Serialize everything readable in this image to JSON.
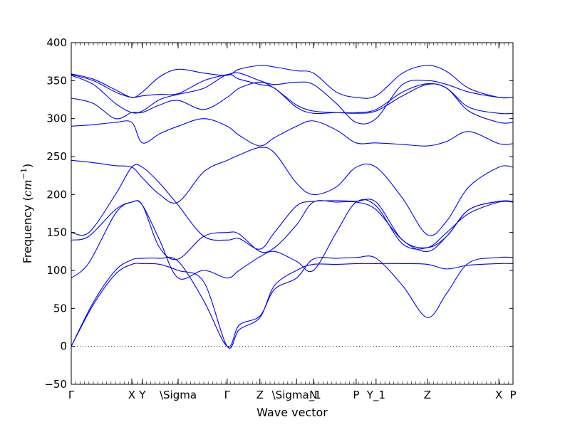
{
  "chart_data": {
    "type": "line",
    "title": "",
    "xlabel": "Wave vector",
    "ylabel_text": "Frequency (",
    "ylabel_unit": "cm",
    "ylabel_exp": "−1",
    "ylabel_close": ")",
    "ylim": [
      -50,
      400
    ],
    "yticks": [
      -50,
      0,
      50,
      100,
      150,
      200,
      250,
      300,
      350,
      400
    ],
    "xlim": [
      0,
      1
    ],
    "xticks": [
      {
        "label": "Γ",
        "x": 0.0
      },
      {
        "label": "X",
        "x": 0.137
      },
      {
        "label": "Y",
        "x": 0.161
      },
      {
        "label": "\\Sigma",
        "x": 0.242
      },
      {
        "label": "Γ",
        "x": 0.353
      },
      {
        "label": "Z",
        "x": 0.427
      },
      {
        "label": "\\Sigma_1",
        "x": 0.51
      },
      {
        "label": "N",
        "x": 0.548
      },
      {
        "label": "P",
        "x": 0.645
      },
      {
        "label": "Y_1",
        "x": 0.69
      },
      {
        "label": "Z",
        "x": 0.806
      },
      {
        "label": "X",
        "x": 0.968
      },
      {
        "label": "P",
        "x": 1.0
      }
    ],
    "zero_line": true,
    "line_color": "#0000ff",
    "series": [
      {
        "x": [
          0,
          0.05,
          0.1,
          0.137,
          0.161,
          0.2,
          0.242,
          0.3,
          0.353,
          0.38,
          0.427,
          0.46,
          0.51,
          0.548,
          0.6,
          0.645,
          0.69,
          0.75,
          0.806,
          0.85,
          0.9,
          0.968,
          1.0
        ],
        "y": [
          0,
          55,
          95,
          108,
          109,
          108,
          100,
          85,
          0,
          22,
          38,
          80,
          100,
          108,
          108,
          109,
          109,
          109,
          108,
          102,
          107,
          109,
          109
        ]
      },
      {
        "x": [
          0,
          0.05,
          0.1,
          0.137,
          0.161,
          0.2,
          0.242,
          0.3,
          0.353,
          0.38,
          0.427,
          0.46,
          0.51,
          0.548,
          0.6,
          0.645,
          0.69,
          0.75,
          0.806,
          0.85,
          0.9,
          0.968,
          1.0
        ],
        "y": [
          0,
          58,
          100,
          114,
          116,
          116,
          112,
          60,
          0,
          28,
          40,
          75,
          90,
          115,
          116,
          117,
          116,
          80,
          38,
          70,
          110,
          117,
          117
        ]
      },
      {
        "x": [
          0,
          0.04,
          0.1,
          0.137,
          0.161,
          0.2,
          0.242,
          0.3,
          0.353,
          0.38,
          0.427,
          0.46,
          0.51,
          0.548,
          0.6,
          0.645,
          0.69,
          0.75,
          0.806,
          0.85,
          0.9,
          0.968,
          1.0
        ],
        "y": [
          90,
          110,
          175,
          190,
          186,
          140,
          90,
          100,
          90,
          100,
          118,
          125,
          112,
          100,
          150,
          190,
          185,
          135,
          130,
          150,
          175,
          190,
          190
        ]
      },
      {
        "x": [
          0,
          0.04,
          0.1,
          0.137,
          0.161,
          0.2,
          0.242,
          0.3,
          0.353,
          0.38,
          0.427,
          0.46,
          0.51,
          0.548,
          0.6,
          0.645,
          0.69,
          0.75,
          0.806,
          0.85,
          0.9,
          0.968,
          1.0
        ],
        "y": [
          140,
          145,
          180,
          190,
          186,
          130,
          115,
          145,
          150,
          148,
          125,
          130,
          160,
          190,
          190,
          190,
          180,
          140,
          125,
          145,
          180,
          191,
          191
        ]
      },
      {
        "x": [
          0,
          0.04,
          0.1,
          0.137,
          0.161,
          0.2,
          0.242,
          0.3,
          0.353,
          0.38,
          0.427,
          0.46,
          0.51,
          0.548,
          0.6,
          0.645,
          0.69,
          0.75,
          0.806,
          0.85,
          0.9,
          0.968,
          1.0
        ],
        "y": [
          150,
          150,
          200,
          236,
          236,
          215,
          186,
          145,
          140,
          142,
          128,
          150,
          185,
          191,
          192,
          191,
          190,
          140,
          130,
          145,
          180,
          191,
          191
        ]
      },
      {
        "x": [
          0,
          0.05,
          0.1,
          0.137,
          0.161,
          0.2,
          0.242,
          0.3,
          0.353,
          0.38,
          0.427,
          0.46,
          0.51,
          0.548,
          0.6,
          0.645,
          0.69,
          0.75,
          0.806,
          0.85,
          0.9,
          0.968,
          1.0
        ],
        "y": [
          245,
          242,
          238,
          236,
          222,
          200,
          190,
          230,
          245,
          252,
          262,
          255,
          215,
          200,
          210,
          236,
          236,
          195,
          147,
          165,
          210,
          236,
          236
        ]
      },
      {
        "x": [
          0,
          0.05,
          0.1,
          0.137,
          0.161,
          0.2,
          0.242,
          0.3,
          0.353,
          0.38,
          0.427,
          0.46,
          0.51,
          0.548,
          0.6,
          0.645,
          0.69,
          0.75,
          0.806,
          0.85,
          0.9,
          0.968,
          1.0
        ],
        "y": [
          290,
          292,
          295,
          295,
          268,
          280,
          290,
          300,
          290,
          278,
          264,
          275,
          290,
          297,
          285,
          268,
          268,
          266,
          264,
          270,
          283,
          267,
          267
        ]
      },
      {
        "x": [
          0,
          0.05,
          0.1,
          0.137,
          0.161,
          0.2,
          0.242,
          0.3,
          0.353,
          0.38,
          0.427,
          0.46,
          0.51,
          0.548,
          0.6,
          0.645,
          0.69,
          0.75,
          0.806,
          0.85,
          0.9,
          0.968,
          1.0
        ],
        "y": [
          327,
          320,
          300,
          308,
          308,
          318,
          324,
          312,
          328,
          340,
          348,
          340,
          318,
          310,
          308,
          307,
          310,
          330,
          345,
          340,
          310,
          295,
          295
        ]
      },
      {
        "x": [
          0,
          0.05,
          0.1,
          0.137,
          0.161,
          0.2,
          0.242,
          0.3,
          0.353,
          0.38,
          0.427,
          0.46,
          0.51,
          0.548,
          0.6,
          0.645,
          0.69,
          0.75,
          0.806,
          0.85,
          0.9,
          0.968,
          1.0
        ],
        "y": [
          357,
          345,
          320,
          308,
          310,
          325,
          332,
          340,
          358,
          352,
          345,
          340,
          315,
          307,
          308,
          308,
          312,
          335,
          346,
          340,
          315,
          307,
          307
        ]
      },
      {
        "x": [
          0,
          0.05,
          0.1,
          0.137,
          0.161,
          0.2,
          0.242,
          0.3,
          0.353,
          0.38,
          0.427,
          0.46,
          0.51,
          0.548,
          0.6,
          0.645,
          0.69,
          0.75,
          0.806,
          0.85,
          0.9,
          0.968,
          1.0
        ],
        "y": [
          358,
          350,
          335,
          328,
          330,
          332,
          333,
          350,
          358,
          360,
          350,
          345,
          348,
          345,
          320,
          295,
          300,
          345,
          350,
          345,
          335,
          328,
          328
        ]
      },
      {
        "x": [
          0,
          0.05,
          0.1,
          0.137,
          0.161,
          0.2,
          0.242,
          0.3,
          0.353,
          0.38,
          0.427,
          0.46,
          0.51,
          0.548,
          0.6,
          0.645,
          0.69,
          0.75,
          0.806,
          0.85,
          0.9,
          0.968,
          1.0
        ],
        "y": [
          359,
          352,
          338,
          328,
          335,
          355,
          365,
          360,
          357,
          365,
          370,
          368,
          363,
          360,
          335,
          328,
          330,
          360,
          370,
          362,
          340,
          328,
          328
        ]
      }
    ]
  }
}
